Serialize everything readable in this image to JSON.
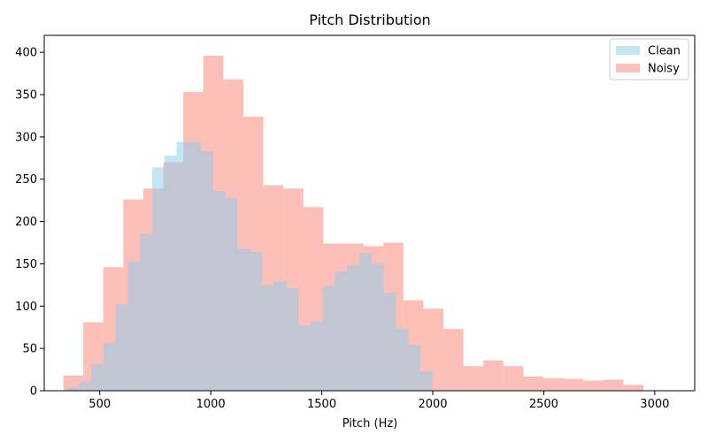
{
  "chart_data": {
    "type": "bar",
    "title": "Pitch Distribution",
    "xlabel": "Pitch (Hz)",
    "ylabel": "",
    "xlim": [
      250,
      3180
    ],
    "ylim": [
      0,
      420
    ],
    "xticks": [
      500,
      1000,
      1500,
      2000,
      2500,
      3000
    ],
    "yticks": [
      0,
      50,
      100,
      150,
      200,
      250,
      300,
      350,
      400
    ],
    "grid": false,
    "legend_position": "top-right",
    "series": [
      {
        "name": "Noisy",
        "color": "#fa8072",
        "opacity": 0.5,
        "bin_start": 336,
        "bin_width": 90.1,
        "counts": [
          18,
          81,
          146,
          226,
          239,
          270,
          353,
          396,
          368,
          324,
          243,
          239,
          217,
          174,
          174,
          171,
          175,
          107,
          97,
          73,
          29,
          36,
          29,
          17,
          15,
          14,
          12,
          13,
          7
        ]
      },
      {
        "name": "Clean",
        "color": "#87ceeb",
        "opacity": 0.5,
        "bin_start": 352,
        "bin_width": 54.9,
        "counts": [
          4,
          11,
          31,
          56,
          102,
          153,
          185,
          264,
          278,
          294,
          294,
          283,
          236,
          228,
          168,
          164,
          125,
          129,
          121,
          77,
          82,
          124,
          141,
          148,
          163,
          150,
          116,
          73,
          54,
          23
        ]
      }
    ]
  }
}
